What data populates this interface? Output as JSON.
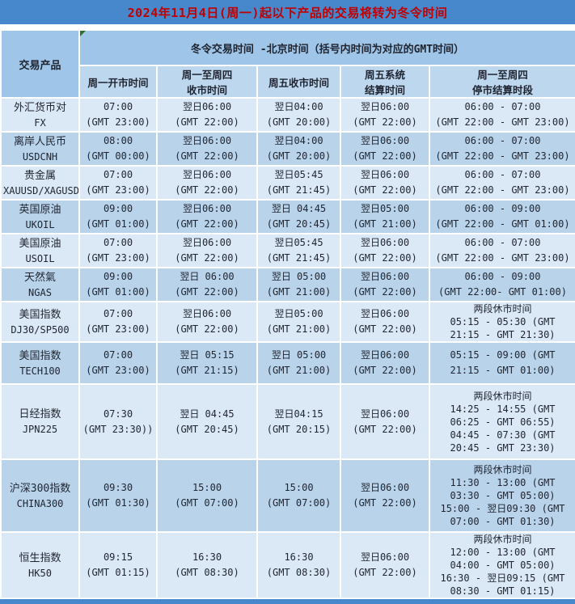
{
  "title": "2024年11月4日(周一)起以下产品的交易将转为冬令时间",
  "colors": {
    "title_bar": "#4788cd",
    "title_text": "#c00000",
    "header": "#9fc5e8",
    "subheader": "#bdd7ee",
    "row_light": "#dbe9f6",
    "row_dark": "#b9d3ea",
    "grid": "#ffffff",
    "text": "#1f2430",
    "comment_marker": "#2f6f2f"
  },
  "table": {
    "corner_header": "交易产品",
    "merged_header": "冬令交易时间 -北京时间（括号内时间为对应的GMT时间）",
    "sub_headers": [
      [
        "周一开市时间"
      ],
      [
        "周一至周四",
        "收市时间"
      ],
      [
        "周五收市时间"
      ],
      [
        "周五系统",
        "结算时间"
      ],
      [
        "周一至周四",
        "停市结算时段"
      ]
    ],
    "rows": [
      {
        "product": [
          "外汇货币对",
          "FX"
        ],
        "cells": [
          [
            "07:00",
            "(GMT 23:00)"
          ],
          [
            "翌日06:00",
            "(GMT 22:00)"
          ],
          [
            "翌日04:00",
            "(GMT 20:00)"
          ],
          [
            "翌日06:00",
            "(GMT 22:00)"
          ],
          [
            "06:00 - 07:00",
            "(GMT 22:00 - GMT 23:00)"
          ]
        ]
      },
      {
        "product": [
          "离岸人民币",
          "USDCNH"
        ],
        "cells": [
          [
            "08:00",
            "(GMT 00:00)"
          ],
          [
            "翌日06:00",
            "(GMT 22:00)"
          ],
          [
            "翌日04:00",
            "(GMT 20:00)"
          ],
          [
            "翌日06:00",
            "(GMT 22:00)"
          ],
          [
            "06:00 - 07:00",
            "(GMT 22:00 - GMT 23:00)"
          ]
        ]
      },
      {
        "product": [
          "贵金属",
          "XAUUSD/XAGUSD"
        ],
        "cells": [
          [
            "07:00",
            "(GMT 23:00)"
          ],
          [
            "翌日06:00",
            "(GMT 22:00)"
          ],
          [
            "翌日05:45",
            "(GMT 21:45)"
          ],
          [
            "翌日06:00",
            "(GMT 22:00)"
          ],
          [
            "06:00 - 07:00",
            "(GMT 22:00 - GMT 23:00)"
          ]
        ]
      },
      {
        "product": [
          "英国原油",
          "UKOIL"
        ],
        "cells": [
          [
            "09:00",
            "(GMT 01:00)"
          ],
          [
            "翌日06:00",
            "(GMT 22:00)"
          ],
          [
            "翌日 04:45",
            "(GMT 20:45)"
          ],
          [
            "翌日05:00",
            "(GMT 21:00)"
          ],
          [
            "06:00 - 09:00",
            "(GMT 22:00 - GMT 01:00)"
          ]
        ]
      },
      {
        "product": [
          "美国原油",
          "USOIL"
        ],
        "cells": [
          [
            "07:00",
            "(GMT 23:00)"
          ],
          [
            "翌日06:00",
            "(GMT 22:00)"
          ],
          [
            "翌日05:45",
            "(GMT 21:45)"
          ],
          [
            "翌日06:00",
            "(GMT 22:00)"
          ],
          [
            "06:00 - 07:00",
            "(GMT 22:00 - GMT 23:00)"
          ]
        ]
      },
      {
        "product": [
          "天然氣",
          "NGAS"
        ],
        "cells": [
          [
            "09:00",
            "(GMT 01:00)"
          ],
          [
            "翌日 06:00",
            "(GMT 22:00)"
          ],
          [
            "翌日 05:00",
            "(GMT 21:00)"
          ],
          [
            "翌日06:00",
            "(GMT 22:00)"
          ],
          [
            "06:00 - 09:00",
            "(GMT 22:00- GMT 01:00)"
          ]
        ]
      },
      {
        "product": [
          "美国指数",
          "DJ30/SP500"
        ],
        "cells": [
          [
            "07:00",
            "(GMT 23:00)"
          ],
          [
            "翌日06:00",
            "(GMT 22:00)"
          ],
          [
            "翌日05:00",
            "(GMT 21:00)"
          ],
          [
            "翌日06:00",
            "(GMT 22:00)"
          ],
          [
            "两段休市时间",
            "05:15 - 05:30 (GMT",
            "21:15 - GMT 21:30)"
          ]
        ]
      },
      {
        "product": [
          "美国指数",
          "TECH100"
        ],
        "cells": [
          [
            "07:00",
            "(GMT 23:00)"
          ],
          [
            "翌日 05:15",
            "(GMT 21:15)"
          ],
          [
            "翌日 05:00",
            "(GMT 21:00)"
          ],
          [
            "翌日06:00",
            "(GMT 22:00)"
          ],
          [
            "05:15 - 09:00 (GMT",
            "21:15 - GMT 01:00)"
          ]
        ]
      },
      {
        "product": [
          "日经指数",
          "JPN225"
        ],
        "cells": [
          [
            "07:30",
            "(GMT 23:30))"
          ],
          [
            "翌日 04:45",
            "(GMT 20:45)"
          ],
          [
            "翌日04:15",
            "(GMT 20:15)"
          ],
          [
            "翌日06:00",
            "(GMT 22:00)"
          ],
          [
            "两段休市时间",
            "14:25 - 14:55 (GMT",
            "06:25 - GMT 06:55)",
            "04:45 - 07:30 (GMT",
            "20:45 - GMT 23:30)"
          ]
        ]
      },
      {
        "product": [
          "沪深300指数",
          "CHINA300"
        ],
        "cells": [
          [
            "09:30",
            "(GMT 01:30)"
          ],
          [
            "15:00",
            "(GMT 07:00)"
          ],
          [
            "15:00",
            "(GMT 07:00)"
          ],
          [
            "翌日06:00",
            "(GMT 22:00)"
          ],
          [
            "两段休市时间",
            "11:30 - 13:00 (GMT",
            "03:30 - GMT 05:00)",
            "15:00 - 翌日09:30 (GMT",
            "07:00 - GMT 01:30)"
          ]
        ]
      },
      {
        "product": [
          "恒生指数",
          "HK50"
        ],
        "cells": [
          [
            "09:15",
            "(GMT 01:15)"
          ],
          [
            "16:30",
            "(GMT 08:30)"
          ],
          [
            "16:30",
            "(GMT 08:30)"
          ],
          [
            "翌日06:00",
            "(GMT 22:00)"
          ],
          [
            "两段休市时间",
            "12:00 - 13:00 (GMT",
            "04:00 - GMT 05:00)",
            "16:30 - 翌日09:15 (GMT",
            "08:30 - GMT 01:15)"
          ]
        ]
      }
    ]
  }
}
